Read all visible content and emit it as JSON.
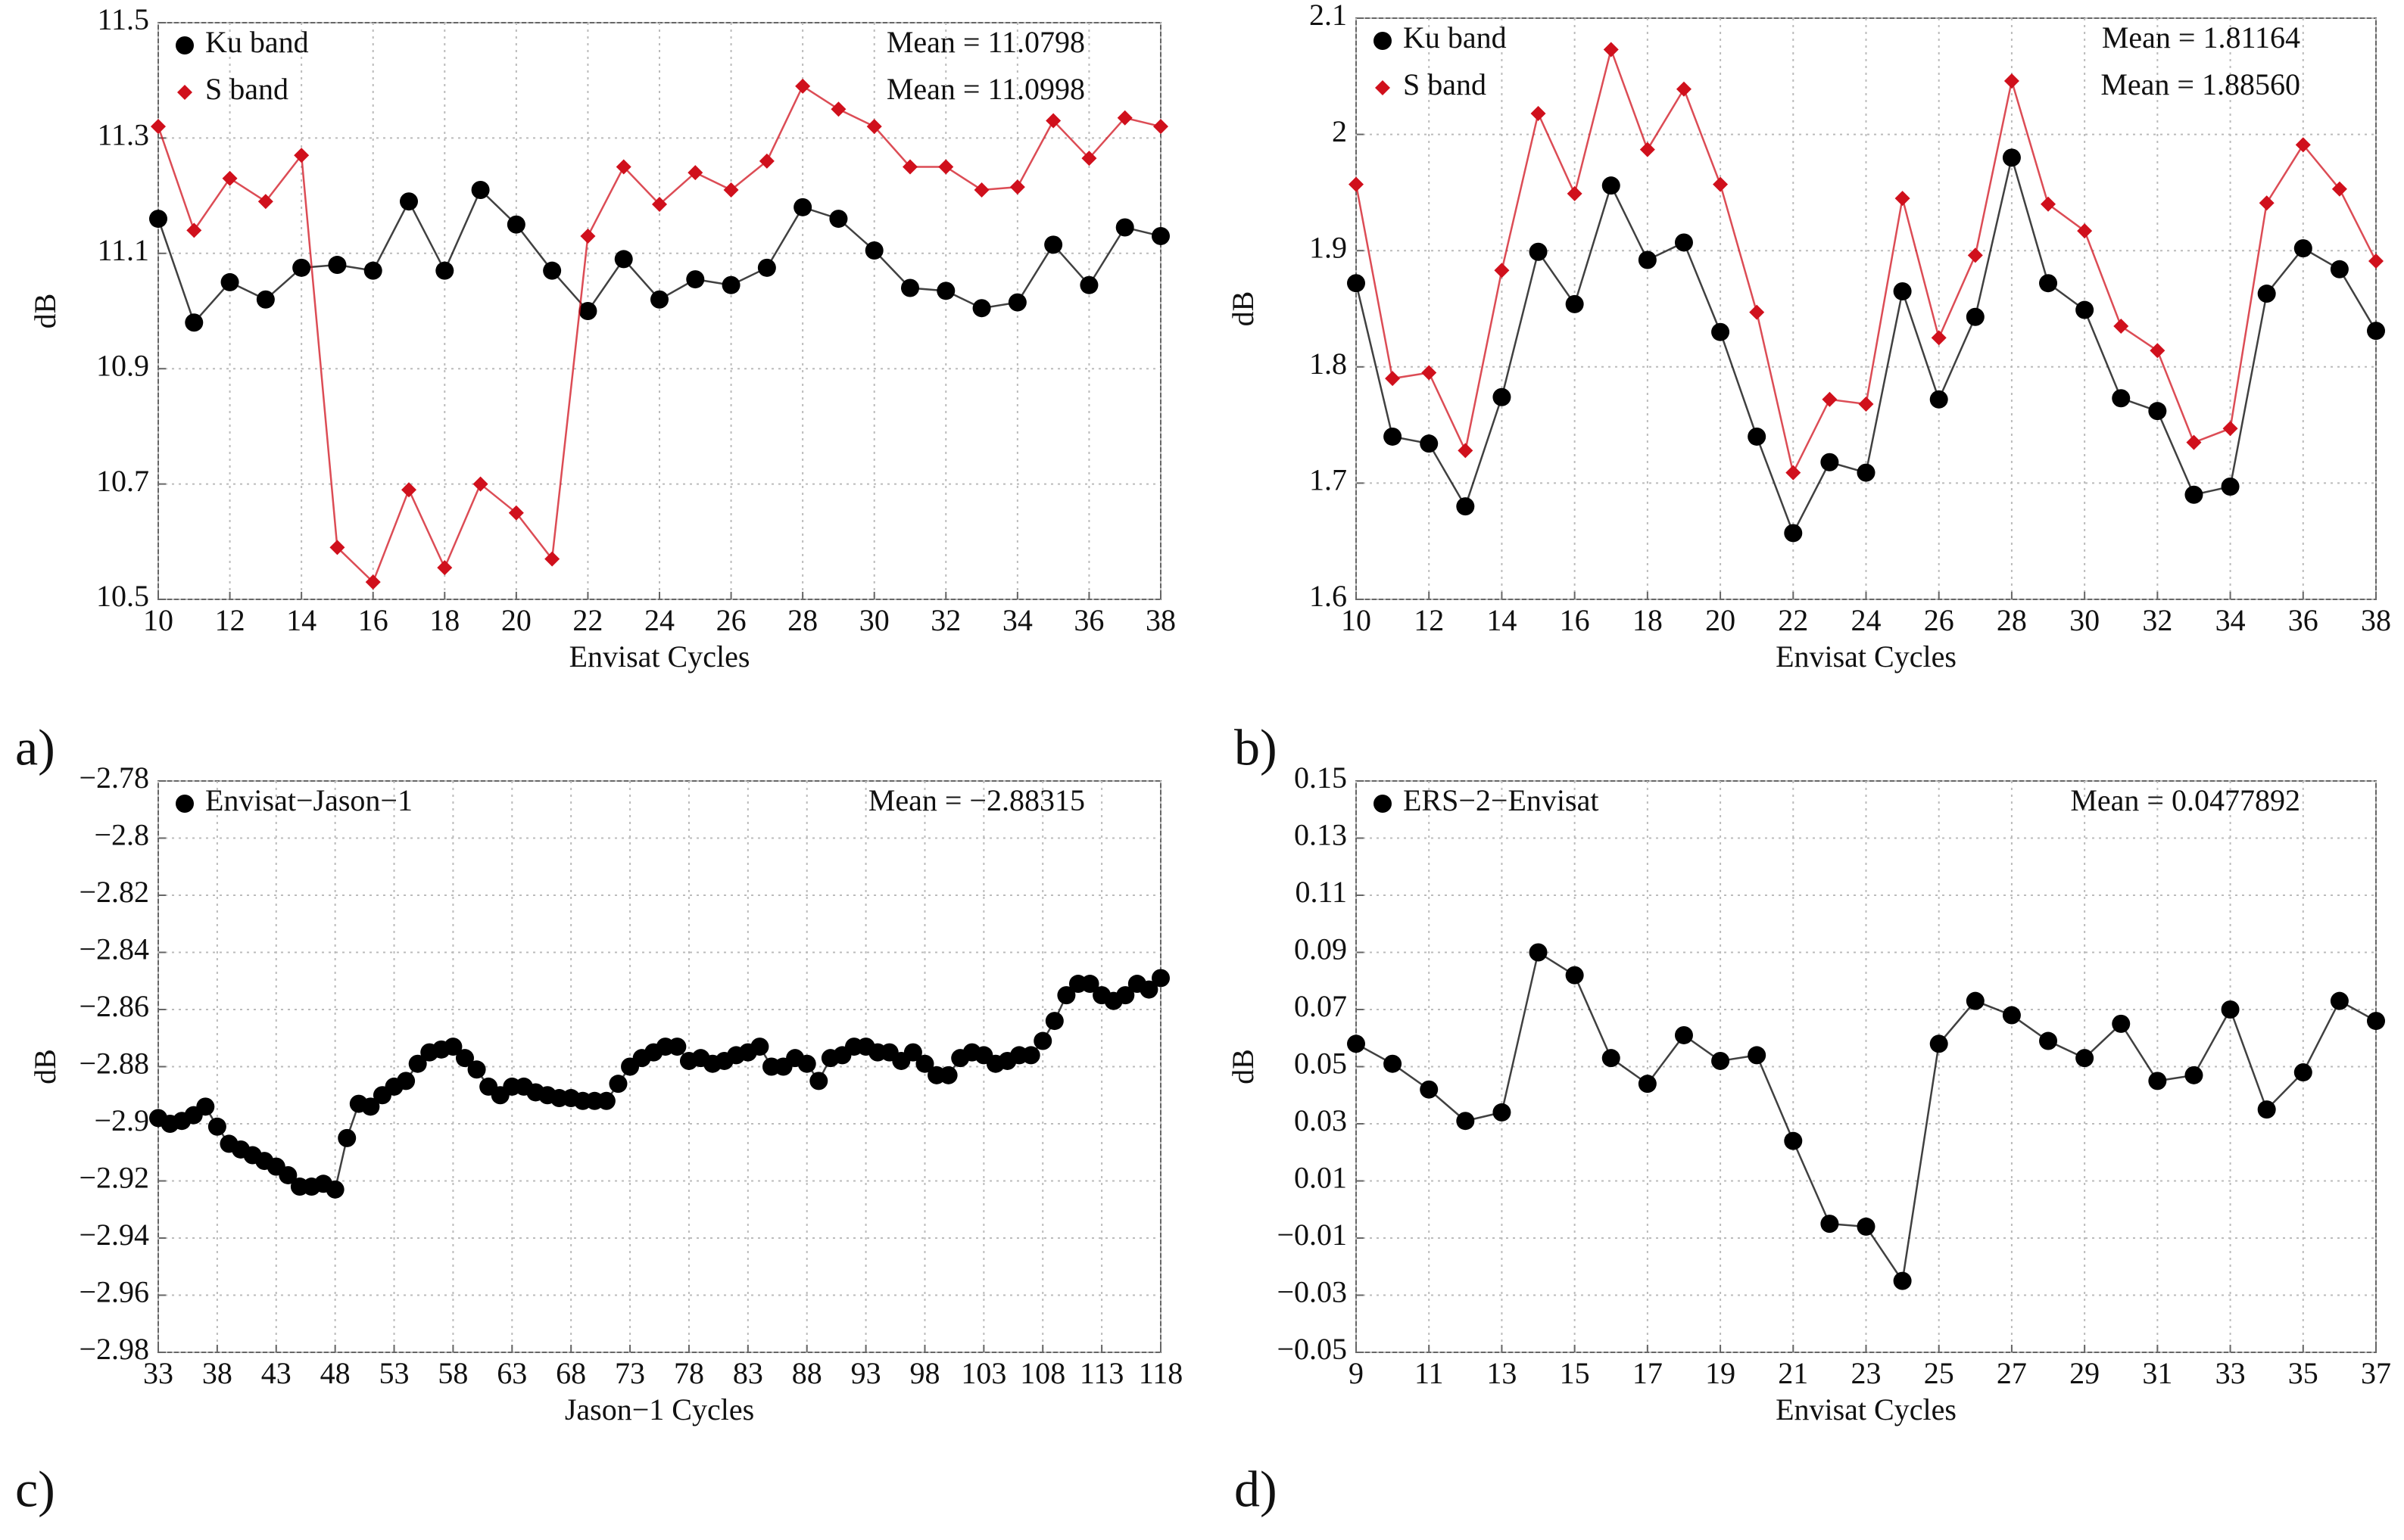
{
  "chart_data": [
    {
      "type": "line",
      "panel_label": "a)",
      "xlabel": "Envisat Cycles",
      "ylabel": "dB",
      "grid": true,
      "legend": "upper left",
      "x": [
        10,
        11,
        12,
        13,
        14,
        15,
        16,
        17,
        18,
        19,
        20,
        21,
        22,
        23,
        24,
        25,
        26,
        27,
        28,
        29,
        30,
        31,
        32,
        33,
        34,
        35,
        36,
        37,
        38
      ],
      "xlim": [
        10,
        38
      ],
      "xticks": [
        10,
        12,
        14,
        16,
        18,
        20,
        22,
        24,
        26,
        28,
        30,
        32,
        34,
        36,
        38
      ],
      "ylim": [
        10.5,
        11.5
      ],
      "yticks": [
        10.5,
        10.7,
        10.9,
        11.1,
        11.3,
        11.5
      ],
      "annotations": [
        "Mean = 11.0798",
        "Mean = 11.0998"
      ],
      "series": [
        {
          "name": "Ku band",
          "color": "#000000",
          "marker": "circle",
          "values": [
            11.16,
            10.98,
            11.05,
            11.02,
            11.075,
            11.08,
            11.07,
            11.19,
            11.07,
            11.21,
            11.15,
            11.07,
            11.0,
            11.09,
            11.02,
            11.055,
            11.045,
            11.075,
            11.18,
            11.16,
            11.105,
            11.04,
            11.035,
            11.005,
            11.015,
            11.115,
            11.045,
            11.145,
            11.13
          ]
        },
        {
          "name": "S band",
          "color": "#d0101c",
          "marker": "diamond",
          "values": [
            11.32,
            11.14,
            11.23,
            11.19,
            11.27,
            10.59,
            10.53,
            10.69,
            10.555,
            10.7,
            10.65,
            10.57,
            11.13,
            11.25,
            11.185,
            11.24,
            11.21,
            11.26,
            11.39,
            11.35,
            11.32,
            11.25,
            11.25,
            11.21,
            11.215,
            11.33,
            11.265,
            11.335,
            11.32
          ]
        }
      ]
    },
    {
      "type": "line",
      "panel_label": "b)",
      "xlabel": "Envisat Cycles",
      "ylabel": "dB",
      "grid": true,
      "legend": "upper left",
      "x": [
        10,
        11,
        12,
        13,
        14,
        15,
        16,
        17,
        18,
        19,
        20,
        21,
        22,
        23,
        24,
        25,
        26,
        27,
        28,
        29,
        30,
        31,
        32,
        33,
        34,
        35,
        36,
        37,
        38
      ],
      "xlim": [
        10,
        38
      ],
      "xticks": [
        10,
        12,
        14,
        16,
        18,
        20,
        22,
        24,
        26,
        28,
        30,
        32,
        34,
        36,
        38
      ],
      "ylim": [
        1.6,
        2.1
      ],
      "yticks": [
        1.6,
        1.7,
        1.8,
        1.9,
        2,
        2.1
      ],
      "annotations": [
        "Mean = 1.81164",
        "Mean = 1.88560"
      ],
      "series": [
        {
          "name": "Ku band",
          "color": "#000000",
          "marker": "circle",
          "values": [
            1.872,
            1.74,
            1.734,
            1.68,
            1.774,
            1.899,
            1.854,
            1.956,
            1.892,
            1.907,
            1.83,
            1.74,
            1.657,
            1.718,
            1.709,
            1.865,
            1.772,
            1.843,
            1.98,
            1.872,
            1.849,
            1.773,
            1.762,
            1.69,
            1.697,
            1.863,
            1.902,
            1.884,
            1.831
          ]
        },
        {
          "name": "S band",
          "color": "#d0101c",
          "marker": "diamond",
          "values": [
            1.957,
            1.79,
            1.795,
            1.728,
            1.883,
            2.018,
            1.949,
            2.073,
            1.987,
            2.039,
            1.957,
            1.847,
            1.709,
            1.772,
            1.768,
            1.945,
            1.825,
            1.896,
            2.046,
            1.94,
            1.917,
            1.835,
            1.814,
            1.735,
            1.747,
            1.941,
            1.991,
            1.953,
            1.891
          ]
        }
      ]
    },
    {
      "type": "line",
      "panel_label": "c)",
      "xlabel": "Jason−1 Cycles",
      "ylabel": "dB",
      "grid": true,
      "legend": "upper left",
      "x": [
        33,
        34,
        35,
        36,
        37,
        38,
        39,
        40,
        41,
        42,
        43,
        44,
        45,
        46,
        47,
        48,
        49,
        50,
        51,
        52,
        53,
        54,
        55,
        56,
        57,
        58,
        59,
        60,
        61,
        62,
        63,
        64,
        65,
        66,
        67,
        68,
        69,
        70,
        71,
        72,
        73,
        74,
        75,
        76,
        77,
        78,
        79,
        80,
        81,
        82,
        83,
        84,
        85,
        86,
        87,
        88,
        89,
        90,
        91,
        92,
        93,
        94,
        95,
        96,
        97,
        98,
        99,
        100,
        101,
        102,
        103,
        104,
        105,
        106,
        107,
        108,
        109,
        110,
        111,
        112,
        113,
        114,
        115,
        116,
        117,
        118
      ],
      "xlim": [
        33,
        118
      ],
      "xticks": [
        33,
        38,
        43,
        48,
        53,
        58,
        63,
        68,
        73,
        78,
        83,
        88,
        93,
        98,
        103,
        108,
        113,
        118
      ],
      "ylim": [
        -2.98,
        -2.78
      ],
      "yticks": [
        {
          "value": -2.98,
          "label": "−2.98"
        },
        {
          "value": -2.96,
          "label": "−2.96"
        },
        {
          "value": -2.94,
          "label": "−2.94"
        },
        {
          "value": -2.92,
          "label": "−2.92"
        },
        {
          "value": -2.9,
          "label": "−2.9"
        },
        {
          "value": -2.88,
          "label": "−2.88"
        },
        {
          "value": -2.86,
          "label": "−2.86"
        },
        {
          "value": -2.84,
          "label": "−2.84"
        },
        {
          "value": -2.82,
          "label": "−2.82"
        },
        {
          "value": -2.8,
          "label": "−2.8"
        },
        {
          "value": -2.78,
          "label": "−2.78"
        }
      ],
      "annotations": [
        "Mean = −2.88315"
      ],
      "series": [
        {
          "name": "Envisat−Jason−1",
          "color": "#000000",
          "marker": "circle",
          "values": [
            -2.898,
            -2.9,
            -2.899,
            -2.897,
            -2.894,
            -2.901,
            -2.907,
            -2.909,
            -2.911,
            -2.913,
            -2.915,
            -2.918,
            -2.922,
            -2.922,
            -2.921,
            -2.923,
            -2.905,
            -2.893,
            -2.894,
            -2.89,
            -2.887,
            -2.885,
            -2.879,
            -2.875,
            -2.874,
            -2.873,
            -2.877,
            -2.881,
            -2.887,
            -2.89,
            -2.887,
            -2.887,
            -2.889,
            -2.89,
            -2.891,
            -2.891,
            -2.892,
            -2.892,
            -2.892,
            -2.886,
            -2.88,
            -2.877,
            -2.875,
            -2.873,
            -2.873,
            -2.878,
            -2.877,
            -2.879,
            -2.878,
            -2.876,
            -2.875,
            -2.873,
            -2.88,
            -2.88,
            -2.877,
            -2.879,
            -2.885,
            -2.877,
            -2.876,
            -2.873,
            -2.873,
            -2.875,
            -2.875,
            -2.878,
            -2.875,
            -2.879,
            -2.883,
            -2.883,
            -2.877,
            -2.875,
            -2.876,
            -2.879,
            -2.878,
            -2.876,
            -2.876,
            -2.871,
            -2.864,
            -2.855,
            -2.851,
            -2.851,
            -2.855,
            -2.857,
            -2.855,
            -2.851,
            -2.853,
            -2.849
          ]
        }
      ]
    },
    {
      "type": "line",
      "panel_label": "d)",
      "xlabel": "Envisat Cycles",
      "ylabel": "dB",
      "grid": true,
      "legend": "upper left",
      "x": [
        9,
        10,
        11,
        12,
        13,
        14,
        15,
        16,
        17,
        18,
        19,
        20,
        21,
        22,
        23,
        24,
        25,
        26,
        27,
        28,
        29,
        30,
        31,
        32,
        33,
        34,
        35,
        36,
        37
      ],
      "xlim": [
        9,
        37
      ],
      "xticks": [
        9,
        11,
        13,
        15,
        17,
        19,
        21,
        23,
        25,
        27,
        29,
        31,
        33,
        35,
        37
      ],
      "ylim": [
        -0.05,
        0.15
      ],
      "yticks": [
        {
          "value": -0.05,
          "label": "−0.05"
        },
        {
          "value": -0.03,
          "label": "−0.03"
        },
        {
          "value": -0.01,
          "label": "−0.01"
        },
        0.01,
        0.03,
        0.05,
        0.07,
        0.09,
        0.11,
        0.13,
        0.15
      ],
      "annotations": [
        "Mean = 0.0477892"
      ],
      "series": [
        {
          "name": "ERS−2−Envisat",
          "color": "#000000",
          "marker": "circle",
          "values": [
            0.058,
            0.051,
            0.042,
            0.031,
            0.034,
            0.09,
            0.082,
            0.053,
            0.044,
            0.061,
            0.052,
            0.054,
            0.024,
            -0.005,
            -0.006,
            -0.025,
            0.058,
            0.073,
            0.068,
            0.059,
            0.053,
            0.065,
            0.045,
            0.047,
            0.07,
            0.035,
            0.048,
            0.073,
            0.066
          ]
        }
      ]
    }
  ]
}
